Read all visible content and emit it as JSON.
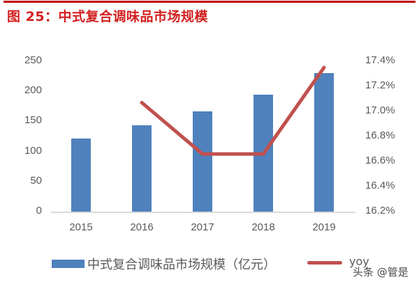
{
  "figure": {
    "title": "图 25：中式复合调味品市场规模",
    "watermark": "头条 @管是"
  },
  "chart_data": {
    "type": "bar+line",
    "title": "中式复合调味品市场规模",
    "categories": [
      "2015",
      "2016",
      "2017",
      "2018",
      "2019"
    ],
    "series": [
      {
        "name": "中式复合调味品市场规模（亿元）",
        "type": "bar",
        "axis": "left",
        "color": "#4f81bd",
        "values": [
          122,
          143,
          167,
          195,
          230
        ]
      },
      {
        "name": "yoy",
        "type": "line",
        "axis": "right",
        "color": "#c0504d",
        "values": [
          null,
          17.07,
          16.66,
          16.66,
          17.35
        ],
        "unit": "%"
      }
    ],
    "y_left": {
      "ticks": [
        "0",
        "50",
        "100",
        "150",
        "200",
        "250"
      ],
      "range": [
        0,
        250
      ]
    },
    "y_right": {
      "ticks": [
        "16.2%",
        "16.4%",
        "16.6%",
        "16.8%",
        "17.0%",
        "17.2%",
        "17.4%"
      ],
      "range": [
        16.2,
        17.4
      ]
    },
    "grid": false,
    "legend_position": "bottom"
  },
  "legend": {
    "bar_label": "中式复合调味品市场规模（亿元）",
    "line_label": "yoy"
  }
}
